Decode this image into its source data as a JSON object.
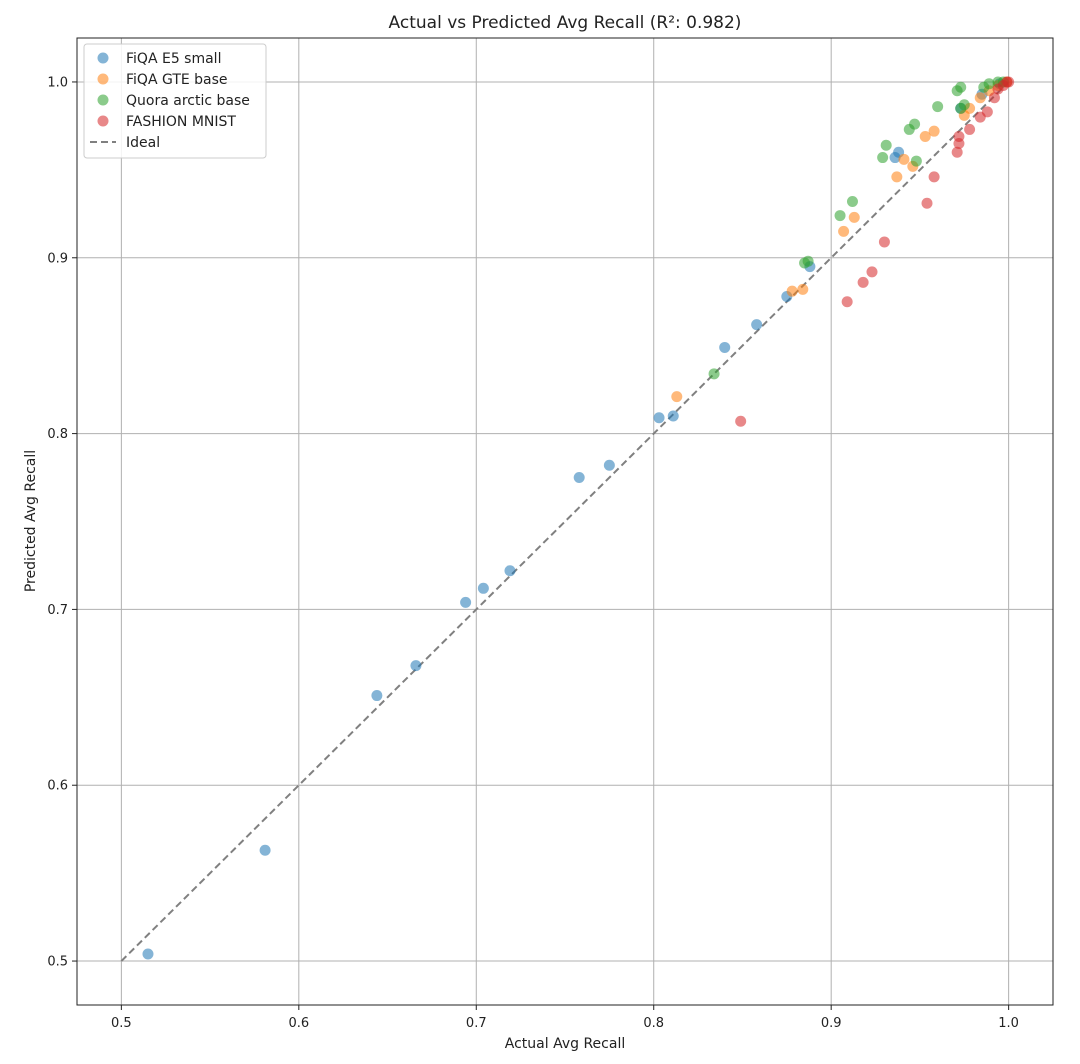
{
  "chart_data": {
    "type": "scatter",
    "title": "Actual vs Predicted Avg Recall (R²: 0.982)",
    "xlabel": "Actual Avg Recall",
    "ylabel": "Predicted Avg Recall",
    "xlim": [
      0.475,
      1.025
    ],
    "ylim": [
      0.475,
      1.025
    ],
    "xticks": [
      "0.5",
      "0.6",
      "0.7",
      "0.8",
      "0.9",
      "1.0"
    ],
    "yticks": [
      "0.5",
      "0.6",
      "0.7",
      "0.8",
      "0.9",
      "1.0"
    ],
    "grid": true,
    "legend_position": "top-left",
    "series": [
      {
        "name": "FiQA E5 small",
        "color": "#1f77b4",
        "points": [
          [
            0.515,
            0.504
          ],
          [
            0.581,
            0.563
          ],
          [
            0.644,
            0.651
          ],
          [
            0.666,
            0.668
          ],
          [
            0.694,
            0.704
          ],
          [
            0.704,
            0.712
          ],
          [
            0.719,
            0.722
          ],
          [
            0.758,
            0.775
          ],
          [
            0.775,
            0.782
          ],
          [
            0.803,
            0.809
          ],
          [
            0.811,
            0.81
          ],
          [
            0.84,
            0.849
          ],
          [
            0.858,
            0.862
          ],
          [
            0.875,
            0.878
          ],
          [
            0.888,
            0.895
          ],
          [
            0.936,
            0.957
          ],
          [
            0.938,
            0.96
          ],
          [
            0.973,
            0.985
          ],
          [
            0.985,
            0.993
          ],
          [
            0.995,
            0.999
          ]
        ]
      },
      {
        "name": "FiQA GTE base",
        "color": "#ff7f0e",
        "points": [
          [
            0.813,
            0.821
          ],
          [
            0.878,
            0.881
          ],
          [
            0.884,
            0.882
          ],
          [
            0.907,
            0.915
          ],
          [
            0.913,
            0.923
          ],
          [
            0.937,
            0.946
          ],
          [
            0.941,
            0.956
          ],
          [
            0.946,
            0.952
          ],
          [
            0.953,
            0.969
          ],
          [
            0.958,
            0.972
          ],
          [
            0.975,
            0.981
          ],
          [
            0.978,
            0.985
          ],
          [
            0.984,
            0.991
          ],
          [
            0.989,
            0.995
          ],
          [
            0.994,
            0.998
          ],
          [
            0.999,
            1.0
          ]
        ]
      },
      {
        "name": "Quora arctic base",
        "color": "#2ca02c",
        "points": [
          [
            0.834,
            0.834
          ],
          [
            0.885,
            0.897
          ],
          [
            0.887,
            0.898
          ],
          [
            0.905,
            0.924
          ],
          [
            0.912,
            0.932
          ],
          [
            0.929,
            0.957
          ],
          [
            0.931,
            0.964
          ],
          [
            0.944,
            0.973
          ],
          [
            0.947,
            0.976
          ],
          [
            0.948,
            0.955
          ],
          [
            0.96,
            0.986
          ],
          [
            0.971,
            0.995
          ],
          [
            0.973,
            0.997
          ],
          [
            0.973,
            0.985
          ],
          [
            0.975,
            0.987
          ],
          [
            0.986,
            0.997
          ],
          [
            0.989,
            0.999
          ],
          [
            0.994,
            1.0
          ],
          [
            0.997,
            1.0
          ]
        ]
      },
      {
        "name": "FASHION MNIST",
        "color": "#d62728",
        "points": [
          [
            0.849,
            0.807
          ],
          [
            0.909,
            0.875
          ],
          [
            0.918,
            0.886
          ],
          [
            0.923,
            0.892
          ],
          [
            0.93,
            0.909
          ],
          [
            0.954,
            0.931
          ],
          [
            0.958,
            0.946
          ],
          [
            0.971,
            0.96
          ],
          [
            0.972,
            0.965
          ],
          [
            0.972,
            0.969
          ],
          [
            0.978,
            0.973
          ],
          [
            0.984,
            0.98
          ],
          [
            0.988,
            0.983
          ],
          [
            0.992,
            0.991
          ],
          [
            0.994,
            0.996
          ],
          [
            0.997,
            0.998
          ],
          [
            0.999,
            1.0
          ],
          [
            1.0,
            1.0
          ]
        ]
      }
    ],
    "ideal_line": {
      "name": "Ideal",
      "color": "#808080",
      "from": [
        0.5,
        0.5
      ],
      "to": [
        1.0,
        1.0
      ]
    }
  }
}
